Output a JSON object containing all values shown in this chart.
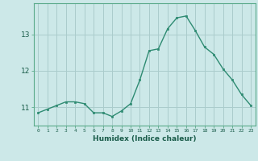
{
  "x": [
    0,
    1,
    2,
    3,
    4,
    5,
    6,
    7,
    8,
    9,
    10,
    11,
    12,
    13,
    14,
    15,
    16,
    17,
    18,
    19,
    20,
    21,
    22,
    23
  ],
  "y": [
    10.85,
    10.95,
    11.05,
    11.15,
    11.15,
    11.1,
    10.85,
    10.85,
    10.75,
    10.9,
    11.1,
    11.75,
    12.55,
    12.6,
    13.15,
    13.45,
    13.5,
    13.1,
    12.65,
    12.45,
    12.05,
    11.75,
    11.35,
    11.05
  ],
  "line_color": "#2e8b72",
  "marker_color": "#2e8b72",
  "bg_color": "#cce8e8",
  "grid_color": "#aacccc",
  "xlabel": "Humidex (Indice chaleur)",
  "yticks": [
    11,
    12,
    13
  ],
  "xlim": [
    -0.5,
    23.5
  ],
  "ylim": [
    10.5,
    13.85
  ]
}
